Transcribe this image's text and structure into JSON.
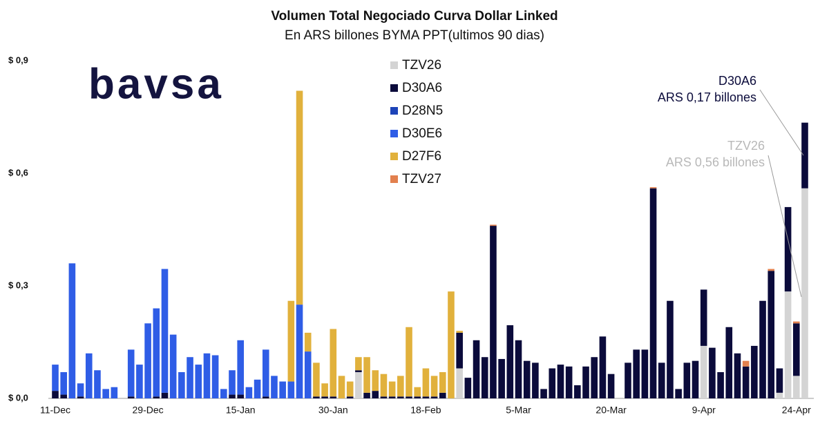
{
  "chart_data": {
    "type": "bar",
    "stacked": true,
    "title": "Volumen Total Negociado Curva Dollar Linked",
    "subtitle": "En ARS billones BYMA PPT(ultimos 90 dias)",
    "logo": "bavsa",
    "ylim": [
      0,
      0.9
    ],
    "yticks": [
      {
        "value": 0.9,
        "label": "$ 0,9"
      },
      {
        "value": 0.6,
        "label": "$ 0,6"
      },
      {
        "value": 0.3,
        "label": "$ 0,3"
      },
      {
        "value": 0,
        "label": "$ 0,0"
      }
    ],
    "categories": [
      "11-Dec",
      null,
      null,
      null,
      null,
      null,
      null,
      null,
      null,
      null,
      null,
      "29-Dec",
      null,
      null,
      null,
      null,
      null,
      null,
      null,
      null,
      null,
      null,
      "15-Jan",
      null,
      null,
      null,
      null,
      null,
      null,
      null,
      null,
      null,
      null,
      "30-Jan",
      null,
      null,
      null,
      null,
      null,
      null,
      null,
      null,
      null,
      null,
      "18-Feb",
      null,
      null,
      null,
      null,
      null,
      null,
      null,
      null,
      null,
      null,
      "5-Mar",
      null,
      null,
      null,
      null,
      null,
      null,
      null,
      null,
      null,
      null,
      "20-Mar",
      null,
      null,
      null,
      null,
      null,
      null,
      null,
      null,
      null,
      null,
      "9-Apr",
      null,
      null,
      null,
      null,
      null,
      null,
      null,
      null,
      null,
      null,
      "24-Apr",
      null
    ],
    "series": [
      {
        "name": "TZV26",
        "color": "#d4d4d4",
        "values": [
          0,
          0,
          0,
          0,
          0,
          0,
          0,
          0,
          null,
          0,
          0,
          0,
          0,
          0,
          0,
          0,
          0,
          0,
          0,
          0,
          0,
          0,
          0,
          0,
          0,
          0,
          0,
          0,
          0,
          0,
          0,
          0,
          0,
          0,
          0,
          0,
          0.07,
          0,
          0,
          0,
          0,
          0,
          0,
          0,
          0,
          0,
          0,
          0,
          0.08,
          0,
          0,
          0,
          0,
          0,
          0,
          0,
          0,
          0,
          0,
          0,
          0,
          0,
          0,
          0,
          0,
          0,
          0,
          null,
          0,
          0,
          0,
          0,
          0,
          0,
          0,
          0,
          0,
          0.14,
          0,
          0,
          0,
          0,
          0,
          0,
          0,
          0,
          0.015,
          0.285,
          0.06,
          0.56
        ]
      },
      {
        "name": "D30A6",
        "color": "#0b0b3b",
        "values": [
          0.02,
          0.01,
          0,
          0.005,
          0,
          0,
          0,
          0,
          null,
          0.005,
          0,
          0,
          0.005,
          0.015,
          0,
          0,
          0,
          0,
          0,
          0,
          0,
          0.01,
          0.01,
          0,
          0,
          0.005,
          0,
          0,
          0,
          0,
          0,
          0.005,
          0.005,
          0.005,
          0,
          0.005,
          0.005,
          0.015,
          0.02,
          0.005,
          0.005,
          0.005,
          0.005,
          0.005,
          0.005,
          0.005,
          0.015,
          0,
          0.095,
          0.055,
          0.155,
          0.11,
          0.46,
          0.105,
          0.195,
          0.155,
          0.1,
          0.095,
          0.025,
          0.08,
          0.09,
          0.085,
          0.035,
          0.085,
          0.11,
          0.165,
          0.065,
          null,
          0.095,
          0.13,
          0.13,
          0.56,
          0.095,
          0.26,
          0.025,
          0.095,
          0.1,
          0.15,
          0.135,
          0.07,
          0.19,
          0.12,
          0.085,
          0.14,
          0.26,
          0.34,
          0.065,
          0.225,
          0.14,
          0.175
        ]
      },
      {
        "name": "D28N5",
        "color": "#1d44b8",
        "values": [
          0,
          0,
          0,
          0,
          0,
          0,
          0,
          0,
          null,
          0,
          0,
          0,
          0,
          0,
          0,
          0,
          0,
          0,
          0,
          0,
          0,
          0,
          0,
          0,
          0,
          0,
          0,
          0,
          0,
          0,
          0,
          0,
          0,
          0,
          0,
          0,
          0,
          0,
          0,
          0,
          0,
          0,
          0,
          0,
          0,
          0,
          0,
          0,
          0,
          0,
          0,
          0,
          0,
          0,
          0,
          0,
          0,
          0,
          0,
          0,
          0,
          0,
          0,
          0,
          0,
          0,
          0,
          null,
          0,
          0,
          0,
          0,
          0,
          0,
          0,
          0,
          0,
          0,
          0,
          0,
          0,
          0,
          0,
          0,
          0,
          0,
          0,
          0,
          0,
          0
        ]
      },
      {
        "name": "D30E6",
        "color": "#2f5de6",
        "values": [
          0.07,
          0.06,
          0.36,
          0.035,
          0.12,
          0.075,
          0.025,
          0.03,
          null,
          0.125,
          0.09,
          0.2,
          0.235,
          0.33,
          0.17,
          0.07,
          0.11,
          0.09,
          0.12,
          0.115,
          0.025,
          0.065,
          0.145,
          0.03,
          0.05,
          0.125,
          0.06,
          0.045,
          0.045,
          0.25,
          0.125,
          0,
          0,
          0,
          0,
          0,
          0,
          0,
          0,
          0,
          0,
          0,
          0,
          0,
          0,
          0,
          0,
          0,
          0,
          0,
          0,
          0,
          0,
          0,
          0,
          0,
          0,
          0,
          0,
          0,
          0,
          0,
          0,
          0,
          0,
          0,
          0,
          null,
          0,
          0,
          0,
          0,
          0,
          0,
          0,
          0,
          0,
          0,
          0,
          0,
          0,
          0,
          0,
          0,
          0,
          0,
          0,
          0,
          0,
          0
        ]
      },
      {
        "name": "D27F6",
        "color": "#e1b13c",
        "values": [
          0,
          0,
          0,
          0,
          0,
          0,
          0,
          0,
          null,
          0,
          0,
          0,
          0,
          0,
          0,
          0,
          0,
          0,
          0,
          0,
          0,
          0,
          0,
          0,
          0,
          0,
          0,
          0,
          0.215,
          0.57,
          0.05,
          0.09,
          0.035,
          0.18,
          0.06,
          0.04,
          0.035,
          0.095,
          0.055,
          0.06,
          0.04,
          0.055,
          0.185,
          0.025,
          0.075,
          0.055,
          0.055,
          0.285,
          0.005,
          0,
          0,
          0,
          0,
          0,
          0,
          0,
          0,
          0,
          0,
          0,
          0,
          0,
          0,
          0,
          0,
          0,
          0,
          null,
          0,
          0,
          0,
          0,
          0,
          0,
          0,
          0,
          0,
          0,
          0,
          0,
          0,
          0,
          0,
          0,
          0,
          0,
          0,
          0,
          0,
          0
        ]
      },
      {
        "name": "TZV27",
        "color": "#e2804e",
        "values": [
          0,
          0,
          0,
          0,
          0,
          0,
          0,
          0,
          null,
          0,
          0,
          0,
          0,
          0,
          0,
          0,
          0,
          0,
          0,
          0,
          0,
          0,
          0,
          0,
          0,
          0,
          0,
          0,
          0,
          0,
          0,
          0,
          0,
          0,
          0,
          0,
          0,
          0,
          0,
          0,
          0,
          0,
          0,
          0,
          0,
          0,
          0,
          0,
          0,
          0,
          0,
          0,
          0.003,
          0,
          0,
          0,
          0,
          0,
          0,
          0,
          0,
          0,
          0,
          0,
          0,
          0,
          0,
          null,
          0,
          0,
          0,
          0.003,
          0,
          0,
          0,
          0,
          0,
          0,
          0,
          0,
          0,
          0,
          0.015,
          0,
          0,
          0.005,
          0,
          0,
          0.005,
          0
        ]
      }
    ],
    "annotations": [
      {
        "lines": [
          "D30A6",
          "ARS 0,17 billones"
        ],
        "color": "#0b0b3b"
      },
      {
        "lines": [
          "TZV26",
          "ARS 0,56 billones"
        ],
        "color": "#b8b8b8"
      }
    ]
  }
}
